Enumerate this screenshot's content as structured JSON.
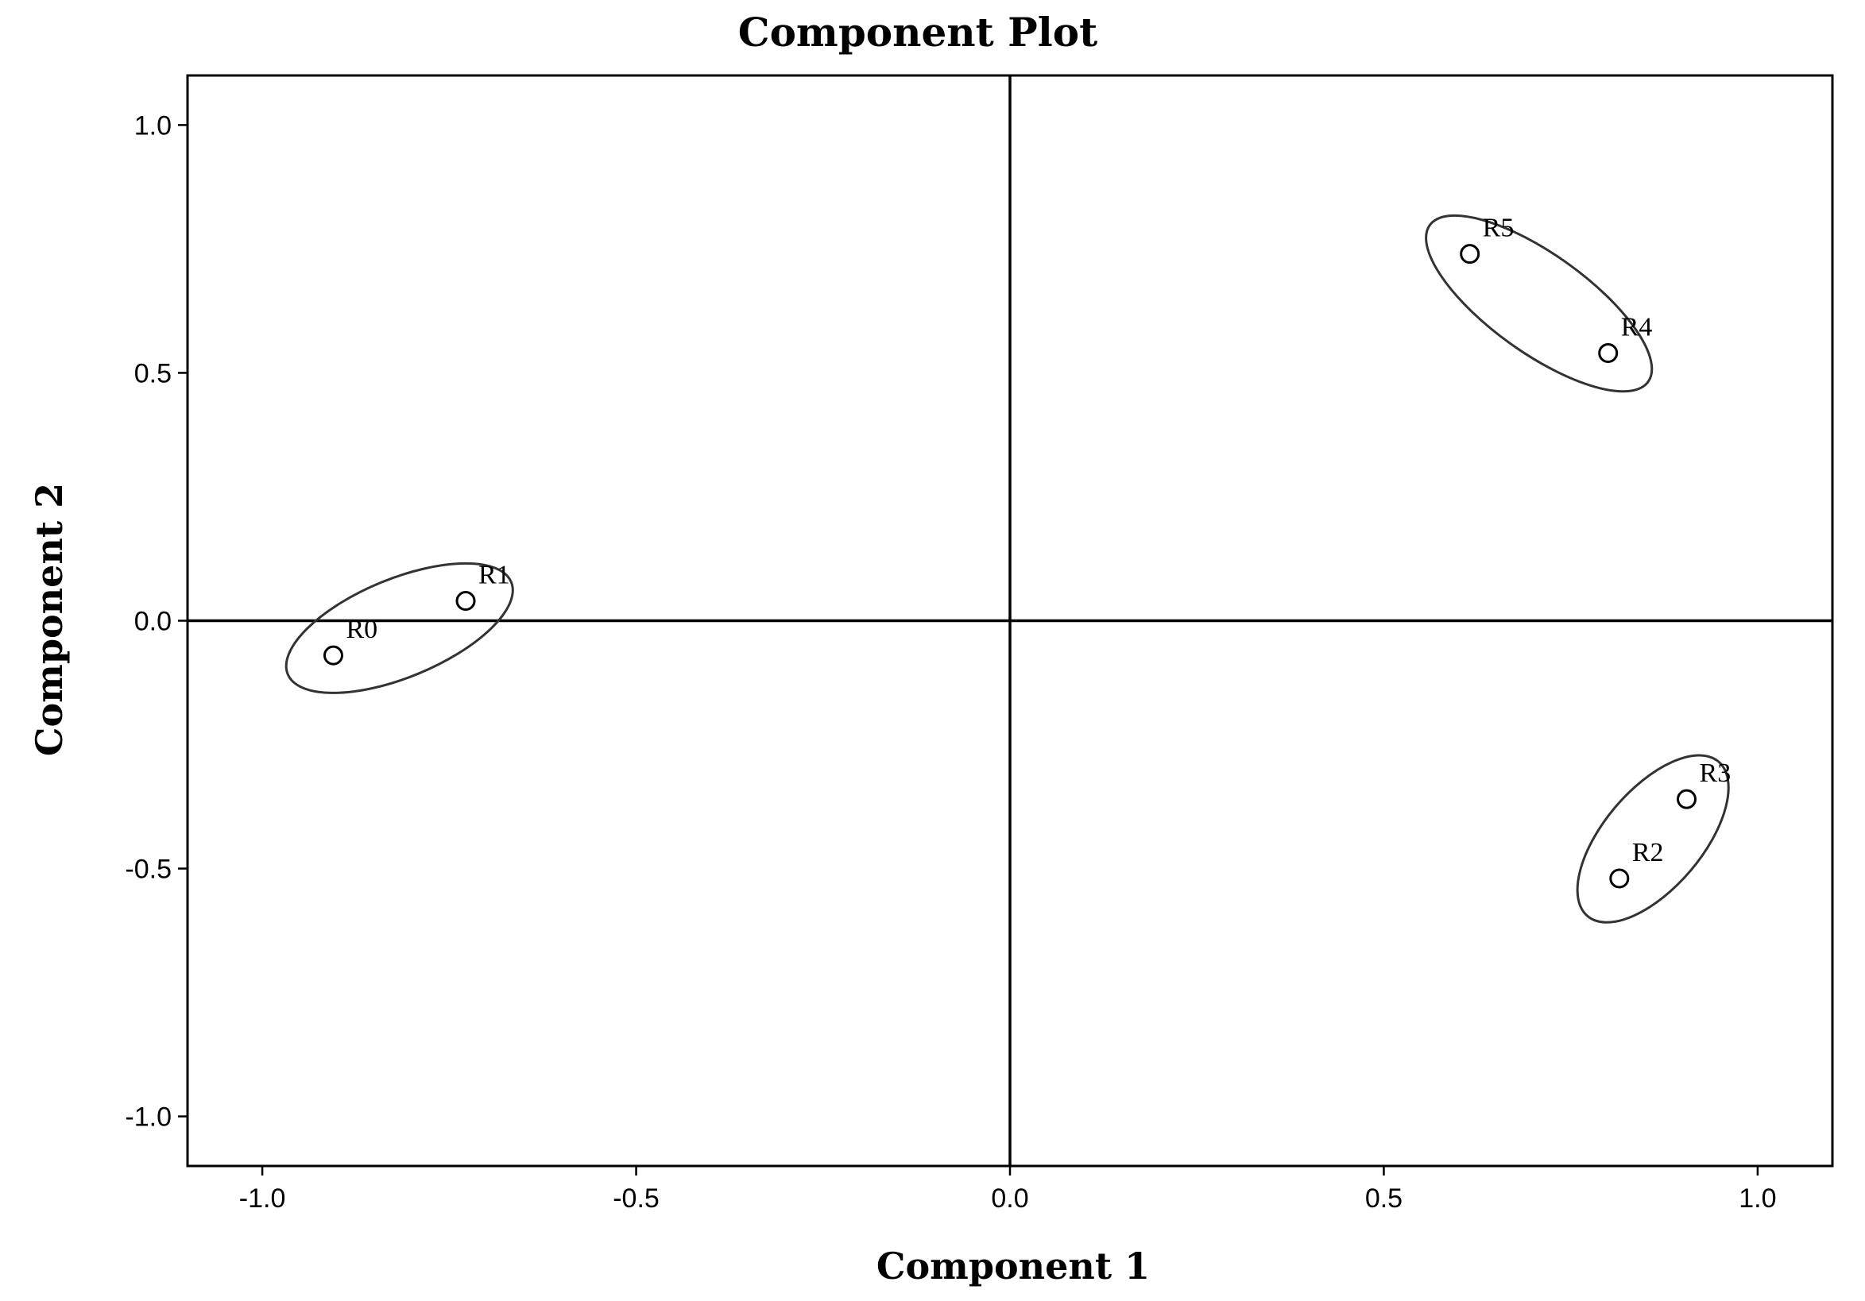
{
  "chart_data": {
    "type": "scatter",
    "title": "Component Plot",
    "xlabel": "Component 1",
    "ylabel": "Component 2",
    "xlim": [
      -1.1,
      1.1
    ],
    "ylim": [
      -1.1,
      1.1
    ],
    "xticks": [
      -1.0,
      -0.5,
      0.0,
      0.5,
      1.0
    ],
    "yticks": [
      -1.0,
      -0.5,
      0.0,
      0.5,
      1.0
    ],
    "xtick_labels": [
      "-1.0",
      "-0.5",
      "0.0",
      "0.5",
      "1.0"
    ],
    "ytick_labels": [
      "-1.0",
      "-0.5",
      "0.0",
      "0.5",
      "1.0"
    ],
    "grid": false,
    "reference_lines": {
      "x": 0.0,
      "y": 0.0
    },
    "points": [
      {
        "label": "R0",
        "x": -0.905,
        "y": -0.07
      },
      {
        "label": "R1",
        "x": -0.728,
        "y": 0.04
      },
      {
        "label": "R2",
        "x": 0.815,
        "y": -0.52
      },
      {
        "label": "R3",
        "x": 0.905,
        "y": -0.36
      },
      {
        "label": "R4",
        "x": 0.8,
        "y": 0.54
      },
      {
        "label": "R5",
        "x": 0.615,
        "y": 0.74
      }
    ],
    "groups": [
      {
        "members": [
          "R0",
          "R1"
        ],
        "shape": "ellipse"
      },
      {
        "members": [
          "R2",
          "R3"
        ],
        "shape": "ellipse"
      },
      {
        "members": [
          "R4",
          "R5"
        ],
        "shape": "ellipse"
      }
    ]
  }
}
